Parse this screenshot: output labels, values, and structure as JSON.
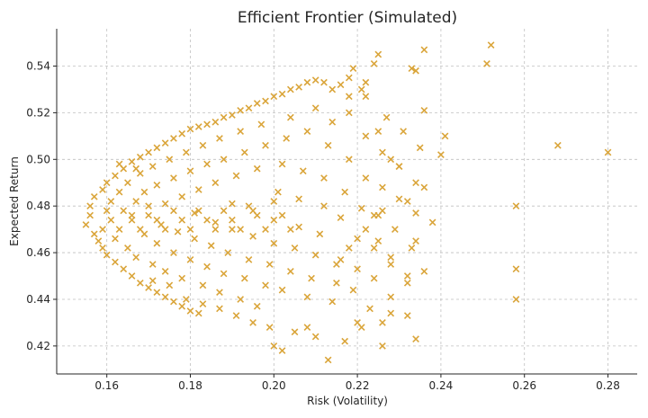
{
  "chart_data": {
    "type": "scatter",
    "title": "Efficient Frontier (Simulated)",
    "xlabel": "Risk (Volatility)",
    "ylabel": "Expected Return",
    "xlim": [
      0.148,
      0.287
    ],
    "ylim": [
      0.408,
      0.556
    ],
    "x_ticks": [
      "0.16",
      "0.18",
      "0.20",
      "0.22",
      "0.24",
      "0.26",
      "0.28"
    ],
    "y_ticks": [
      "0.42",
      "0.44",
      "0.46",
      "0.48",
      "0.50",
      "0.52",
      "0.54"
    ],
    "grid": true,
    "marker": "x",
    "color": "#DAA53A",
    "points": [
      [
        0.156,
        0.476
      ],
      [
        0.155,
        0.472
      ],
      [
        0.157,
        0.468
      ],
      [
        0.156,
        0.48
      ],
      [
        0.158,
        0.465
      ],
      [
        0.157,
        0.484
      ],
      [
        0.159,
        0.462
      ],
      [
        0.159,
        0.487
      ],
      [
        0.16,
        0.459
      ],
      [
        0.16,
        0.49
      ],
      [
        0.162,
        0.456
      ],
      [
        0.162,
        0.493
      ],
      [
        0.164,
        0.453
      ],
      [
        0.164,
        0.496
      ],
      [
        0.166,
        0.45
      ],
      [
        0.166,
        0.499
      ],
      [
        0.168,
        0.447
      ],
      [
        0.168,
        0.501
      ],
      [
        0.17,
        0.445
      ],
      [
        0.17,
        0.503
      ],
      [
        0.172,
        0.443
      ],
      [
        0.172,
        0.505
      ],
      [
        0.174,
        0.441
      ],
      [
        0.174,
        0.507
      ],
      [
        0.176,
        0.439
      ],
      [
        0.176,
        0.509
      ],
      [
        0.178,
        0.437
      ],
      [
        0.178,
        0.511
      ],
      [
        0.18,
        0.435
      ],
      [
        0.18,
        0.513
      ],
      [
        0.182,
        0.434
      ],
      [
        0.182,
        0.514
      ],
      [
        0.184,
        0.515
      ],
      [
        0.186,
        0.516
      ],
      [
        0.188,
        0.518
      ],
      [
        0.19,
        0.519
      ],
      [
        0.192,
        0.521
      ],
      [
        0.194,
        0.522
      ],
      [
        0.196,
        0.524
      ],
      [
        0.198,
        0.525
      ],
      [
        0.2,
        0.527
      ],
      [
        0.202,
        0.528
      ],
      [
        0.204,
        0.53
      ],
      [
        0.206,
        0.531
      ],
      [
        0.208,
        0.533
      ],
      [
        0.21,
        0.534
      ],
      [
        0.212,
        0.533
      ],
      [
        0.159,
        0.47
      ],
      [
        0.16,
        0.478
      ],
      [
        0.161,
        0.474
      ],
      [
        0.161,
        0.482
      ],
      [
        0.162,
        0.466
      ],
      [
        0.163,
        0.486
      ],
      [
        0.163,
        0.47
      ],
      [
        0.164,
        0.478
      ],
      [
        0.165,
        0.462
      ],
      [
        0.165,
        0.49
      ],
      [
        0.166,
        0.474
      ],
      [
        0.167,
        0.482
      ],
      [
        0.167,
        0.458
      ],
      [
        0.168,
        0.494
      ],
      [
        0.169,
        0.468
      ],
      [
        0.169,
        0.486
      ],
      [
        0.17,
        0.476
      ],
      [
        0.171,
        0.455
      ],
      [
        0.171,
        0.497
      ],
      [
        0.172,
        0.464
      ],
      [
        0.172,
        0.489
      ],
      [
        0.173,
        0.472
      ],
      [
        0.174,
        0.481
      ],
      [
        0.174,
        0.452
      ],
      [
        0.175,
        0.5
      ],
      [
        0.176,
        0.46
      ],
      [
        0.176,
        0.492
      ],
      [
        0.177,
        0.469
      ],
      [
        0.178,
        0.484
      ],
      [
        0.178,
        0.449
      ],
      [
        0.179,
        0.503
      ],
      [
        0.18,
        0.457
      ],
      [
        0.18,
        0.495
      ],
      [
        0.181,
        0.466
      ],
      [
        0.181,
        0.477
      ],
      [
        0.182,
        0.487
      ],
      [
        0.183,
        0.446
      ],
      [
        0.183,
        0.506
      ],
      [
        0.184,
        0.454
      ],
      [
        0.184,
        0.498
      ],
      [
        0.185,
        0.463
      ],
      [
        0.186,
        0.473
      ],
      [
        0.186,
        0.49
      ],
      [
        0.187,
        0.443
      ],
      [
        0.187,
        0.509
      ],
      [
        0.188,
        0.451
      ],
      [
        0.188,
        0.5
      ],
      [
        0.189,
        0.46
      ],
      [
        0.19,
        0.47
      ],
      [
        0.19,
        0.481
      ],
      [
        0.191,
        0.493
      ],
      [
        0.192,
        0.44
      ],
      [
        0.192,
        0.512
      ],
      [
        0.193,
        0.449
      ],
      [
        0.193,
        0.503
      ],
      [
        0.194,
        0.457
      ],
      [
        0.195,
        0.467
      ],
      [
        0.195,
        0.478
      ],
      [
        0.196,
        0.496
      ],
      [
        0.196,
        0.437
      ],
      [
        0.197,
        0.515
      ],
      [
        0.198,
        0.446
      ],
      [
        0.198,
        0.506
      ],
      [
        0.199,
        0.455
      ],
      [
        0.2,
        0.464
      ],
      [
        0.2,
        0.474
      ],
      [
        0.201,
        0.486
      ],
      [
        0.202,
        0.498
      ],
      [
        0.202,
        0.444
      ],
      [
        0.203,
        0.509
      ],
      [
        0.204,
        0.452
      ],
      [
        0.204,
        0.518
      ],
      [
        0.205,
        0.462
      ],
      [
        0.206,
        0.471
      ],
      [
        0.206,
        0.483
      ],
      [
        0.207,
        0.495
      ],
      [
        0.208,
        0.441
      ],
      [
        0.208,
        0.512
      ],
      [
        0.209,
        0.449
      ],
      [
        0.21,
        0.459
      ],
      [
        0.21,
        0.522
      ],
      [
        0.211,
        0.468
      ],
      [
        0.212,
        0.48
      ],
      [
        0.212,
        0.492
      ],
      [
        0.213,
        0.506
      ],
      [
        0.214,
        0.439
      ],
      [
        0.214,
        0.516
      ],
      [
        0.215,
        0.447
      ],
      [
        0.216,
        0.457
      ],
      [
        0.216,
        0.475
      ],
      [
        0.217,
        0.486
      ],
      [
        0.218,
        0.5
      ],
      [
        0.218,
        0.527
      ],
      [
        0.219,
        0.444
      ],
      [
        0.22,
        0.453
      ],
      [
        0.22,
        0.466
      ],
      [
        0.221,
        0.479
      ],
      [
        0.222,
        0.492
      ],
      [
        0.222,
        0.51
      ],
      [
        0.223,
        0.436
      ],
      [
        0.224,
        0.449
      ],
      [
        0.224,
        0.462
      ],
      [
        0.225,
        0.476
      ],
      [
        0.226,
        0.488
      ],
      [
        0.226,
        0.503
      ],
      [
        0.227,
        0.518
      ],
      [
        0.228,
        0.441
      ],
      [
        0.228,
        0.455
      ],
      [
        0.229,
        0.47
      ],
      [
        0.23,
        0.483
      ],
      [
        0.23,
        0.497
      ],
      [
        0.231,
        0.512
      ],
      [
        0.232,
        0.433
      ],
      [
        0.232,
        0.447
      ],
      [
        0.233,
        0.462
      ],
      [
        0.234,
        0.477
      ],
      [
        0.234,
        0.49
      ],
      [
        0.235,
        0.505
      ],
      [
        0.236,
        0.521
      ],
      [
        0.236,
        0.452
      ],
      [
        0.166,
        0.476
      ],
      [
        0.168,
        0.47
      ],
      [
        0.17,
        0.48
      ],
      [
        0.172,
        0.474
      ],
      [
        0.174,
        0.47
      ],
      [
        0.176,
        0.478
      ],
      [
        0.178,
        0.474
      ],
      [
        0.18,
        0.47
      ],
      [
        0.182,
        0.478
      ],
      [
        0.184,
        0.474
      ],
      [
        0.186,
        0.47
      ],
      [
        0.188,
        0.478
      ],
      [
        0.19,
        0.474
      ],
      [
        0.192,
        0.47
      ],
      [
        0.194,
        0.48
      ],
      [
        0.196,
        0.476
      ],
      [
        0.198,
        0.47
      ],
      [
        0.2,
        0.482
      ],
      [
        0.202,
        0.476
      ],
      [
        0.204,
        0.47
      ],
      [
        0.163,
        0.498
      ],
      [
        0.167,
        0.496
      ],
      [
        0.171,
        0.448
      ],
      [
        0.175,
        0.446
      ],
      [
        0.179,
        0.44
      ],
      [
        0.183,
        0.438
      ],
      [
        0.187,
        0.436
      ],
      [
        0.191,
        0.433
      ],
      [
        0.195,
        0.43
      ],
      [
        0.199,
        0.428
      ],
      [
        0.2,
        0.42
      ],
      [
        0.202,
        0.418
      ],
      [
        0.205,
        0.426
      ],
      [
        0.208,
        0.428
      ],
      [
        0.21,
        0.424
      ],
      [
        0.213,
        0.414
      ],
      [
        0.217,
        0.422
      ],
      [
        0.22,
        0.43
      ],
      [
        0.221,
        0.428
      ],
      [
        0.226,
        0.42
      ],
      [
        0.226,
        0.43
      ],
      [
        0.228,
        0.434
      ],
      [
        0.234,
        0.423
      ],
      [
        0.215,
        0.455
      ],
      [
        0.218,
        0.462
      ],
      [
        0.222,
        0.47
      ],
      [
        0.225,
        0.465
      ],
      [
        0.228,
        0.458
      ],
      [
        0.232,
        0.45
      ],
      [
        0.234,
        0.465
      ],
      [
        0.236,
        0.488
      ],
      [
        0.238,
        0.473
      ],
      [
        0.24,
        0.502
      ],
      [
        0.241,
        0.51
      ],
      [
        0.252,
        0.549
      ],
      [
        0.251,
        0.541
      ],
      [
        0.236,
        0.547
      ],
      [
        0.234,
        0.538
      ],
      [
        0.233,
        0.539
      ],
      [
        0.225,
        0.545
      ],
      [
        0.224,
        0.541
      ],
      [
        0.222,
        0.533
      ],
      [
        0.221,
        0.53
      ],
      [
        0.219,
        0.539
      ],
      [
        0.218,
        0.535
      ],
      [
        0.216,
        0.532
      ],
      [
        0.214,
        0.53
      ],
      [
        0.222,
        0.527
      ],
      [
        0.258,
        0.48
      ],
      [
        0.258,
        0.453
      ],
      [
        0.258,
        0.44
      ],
      [
        0.268,
        0.506
      ],
      [
        0.28,
        0.503
      ],
      [
        0.218,
        0.52
      ],
      [
        0.225,
        0.512
      ],
      [
        0.228,
        0.5
      ],
      [
        0.23,
        0.497
      ],
      [
        0.232,
        0.482
      ],
      [
        0.226,
        0.478
      ],
      [
        0.224,
        0.476
      ]
    ]
  }
}
